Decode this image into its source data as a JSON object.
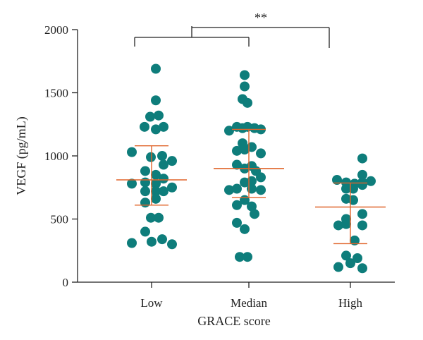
{
  "chart_data": {
    "type": "scatter",
    "subtype": "dot-plot-with-mean-and-sd",
    "xlabel": "GRACE score",
    "ylabel": "VEGF (pg/mL)",
    "ylim": [
      0,
      2000
    ],
    "yticks": [
      "0",
      "500",
      "1000",
      "1500",
      "2000"
    ],
    "categories": [
      "Low",
      "Median",
      "High"
    ],
    "colors": {
      "points": "#0e7d7b",
      "error_bars": "#e0642a",
      "axis": "#222222"
    },
    "groups": [
      {
        "name": "Low",
        "mean": 810,
        "sd_low": 610,
        "sd_high": 1080,
        "points": [
          {
            "x": -0.28,
            "y": 1030
          },
          {
            "x": 0.06,
            "y": 1690
          },
          {
            "x": 0.06,
            "y": 1440
          },
          {
            "x": -0.02,
            "y": 1310
          },
          {
            "x": 0.1,
            "y": 1320
          },
          {
            "x": -0.1,
            "y": 1230
          },
          {
            "x": 0.06,
            "y": 1210
          },
          {
            "x": 0.17,
            "y": 1230
          },
          {
            "x": 0.15,
            "y": 1000
          },
          {
            "x": 0.29,
            "y": 960
          },
          {
            "x": -0.01,
            "y": 990
          },
          {
            "x": 0.17,
            "y": 930
          },
          {
            "x": -0.09,
            "y": 880
          },
          {
            "x": 0.06,
            "y": 850
          },
          {
            "x": 0.17,
            "y": 820
          },
          {
            "x": -0.28,
            "y": 780
          },
          {
            "x": -0.09,
            "y": 790
          },
          {
            "x": 0.06,
            "y": 780
          },
          {
            "x": 0.29,
            "y": 750
          },
          {
            "x": -0.09,
            "y": 720
          },
          {
            "x": 0.06,
            "y": 720
          },
          {
            "x": 0.17,
            "y": 720
          },
          {
            "x": -0.09,
            "y": 630
          },
          {
            "x": 0.06,
            "y": 660
          },
          {
            "x": -0.01,
            "y": 510
          },
          {
            "x": 0.1,
            "y": 510
          },
          {
            "x": -0.09,
            "y": 400
          },
          {
            "x": -0.28,
            "y": 310
          },
          {
            "x": 0.0,
            "y": 320
          },
          {
            "x": 0.15,
            "y": 340
          },
          {
            "x": 0.29,
            "y": 300
          }
        ]
      },
      {
        "name": "Median",
        "mean": 900,
        "sd_low": 670,
        "sd_high": 1210,
        "points": [
          {
            "x": -0.06,
            "y": 1640
          },
          {
            "x": -0.06,
            "y": 1550
          },
          {
            "x": -0.09,
            "y": 1450
          },
          {
            "x": -0.02,
            "y": 1420
          },
          {
            "x": -0.28,
            "y": 1200
          },
          {
            "x": -0.17,
            "y": 1230
          },
          {
            "x": -0.09,
            "y": 1220
          },
          {
            "x": -0.02,
            "y": 1230
          },
          {
            "x": 0.08,
            "y": 1220
          },
          {
            "x": 0.17,
            "y": 1210
          },
          {
            "x": -0.09,
            "y": 1100
          },
          {
            "x": 0.04,
            "y": 1070
          },
          {
            "x": -0.17,
            "y": 1040
          },
          {
            "x": -0.06,
            "y": 1050
          },
          {
            "x": 0.17,
            "y": 1020
          },
          {
            "x": -0.17,
            "y": 930
          },
          {
            "x": -0.06,
            "y": 900
          },
          {
            "x": 0.04,
            "y": 920
          },
          {
            "x": 0.1,
            "y": 880
          },
          {
            "x": -0.28,
            "y": 730
          },
          {
            "x": -0.17,
            "y": 740
          },
          {
            "x": -0.06,
            "y": 790
          },
          {
            "x": 0.04,
            "y": 800
          },
          {
            "x": 0.17,
            "y": 830
          },
          {
            "x": 0.04,
            "y": 740
          },
          {
            "x": 0.17,
            "y": 730
          },
          {
            "x": -0.06,
            "y": 650
          },
          {
            "x": -0.17,
            "y": 610
          },
          {
            "x": 0.04,
            "y": 600
          },
          {
            "x": 0.08,
            "y": 540
          },
          {
            "x": -0.17,
            "y": 470
          },
          {
            "x": -0.06,
            "y": 420
          },
          {
            "x": -0.13,
            "y": 200
          },
          {
            "x": -0.02,
            "y": 200
          }
        ]
      },
      {
        "name": "High",
        "mean": 595,
        "sd_low": 305,
        "sd_high": 785,
        "points": [
          {
            "x": 0.17,
            "y": 980
          },
          {
            "x": -0.19,
            "y": 810
          },
          {
            "x": -0.06,
            "y": 790
          },
          {
            "x": 0.04,
            "y": 740
          },
          {
            "x": 0.17,
            "y": 790
          },
          {
            "x": 0.29,
            "y": 800
          },
          {
            "x": 0.17,
            "y": 850
          },
          {
            "x": -0.06,
            "y": 740
          },
          {
            "x": 0.06,
            "y": 780
          },
          {
            "x": 0.17,
            "y": 770
          },
          {
            "x": -0.06,
            "y": 660
          },
          {
            "x": 0.04,
            "y": 650
          },
          {
            "x": 0.17,
            "y": 540
          },
          {
            "x": -0.06,
            "y": 500
          },
          {
            "x": -0.17,
            "y": 450
          },
          {
            "x": -0.06,
            "y": 460
          },
          {
            "x": 0.17,
            "y": 450
          },
          {
            "x": 0.06,
            "y": 330
          },
          {
            "x": -0.06,
            "y": 210
          },
          {
            "x": 0.1,
            "y": 190
          },
          {
            "x": -0.17,
            "y": 120
          },
          {
            "x": 0.0,
            "y": 150
          },
          {
            "x": 0.17,
            "y": 110
          }
        ]
      }
    ],
    "significance": {
      "label": "**",
      "left_group_span": [
        "Low",
        "Median"
      ],
      "right_group": "High"
    }
  }
}
